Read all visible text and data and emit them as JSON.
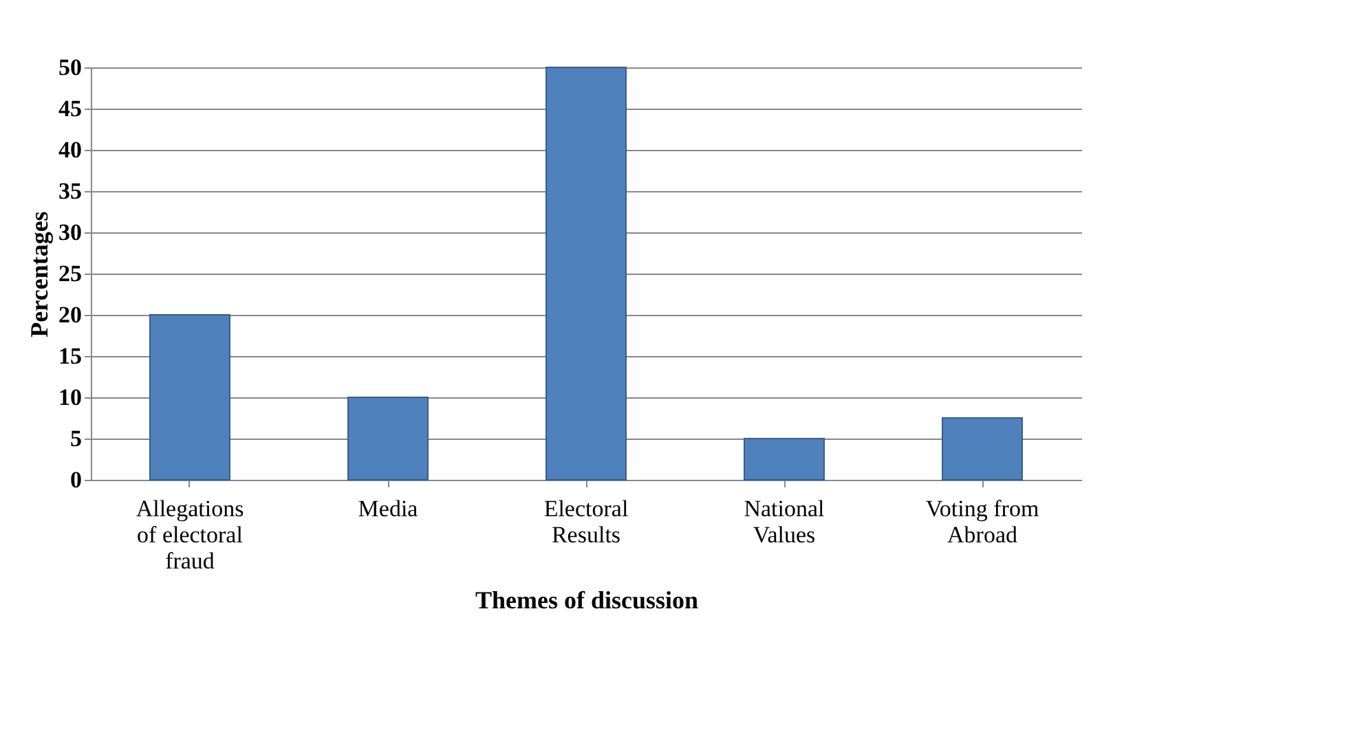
{
  "chart_data": {
    "type": "bar",
    "xlabel": "Themes of discussion",
    "ylabel": "Percentages",
    "categories": [
      "Allegations of electoral fraud",
      "Media",
      "Electoral Results",
      "National Values",
      "Voting from Abroad"
    ],
    "values": [
      20,
      10,
      50,
      5,
      7.5
    ],
    "color": "#4f81bd",
    "ylim": [
      0,
      50
    ],
    "yticks": [
      0,
      5,
      10,
      15,
      20,
      25,
      30,
      35,
      40,
      45,
      50
    ],
    "grid": "y"
  }
}
